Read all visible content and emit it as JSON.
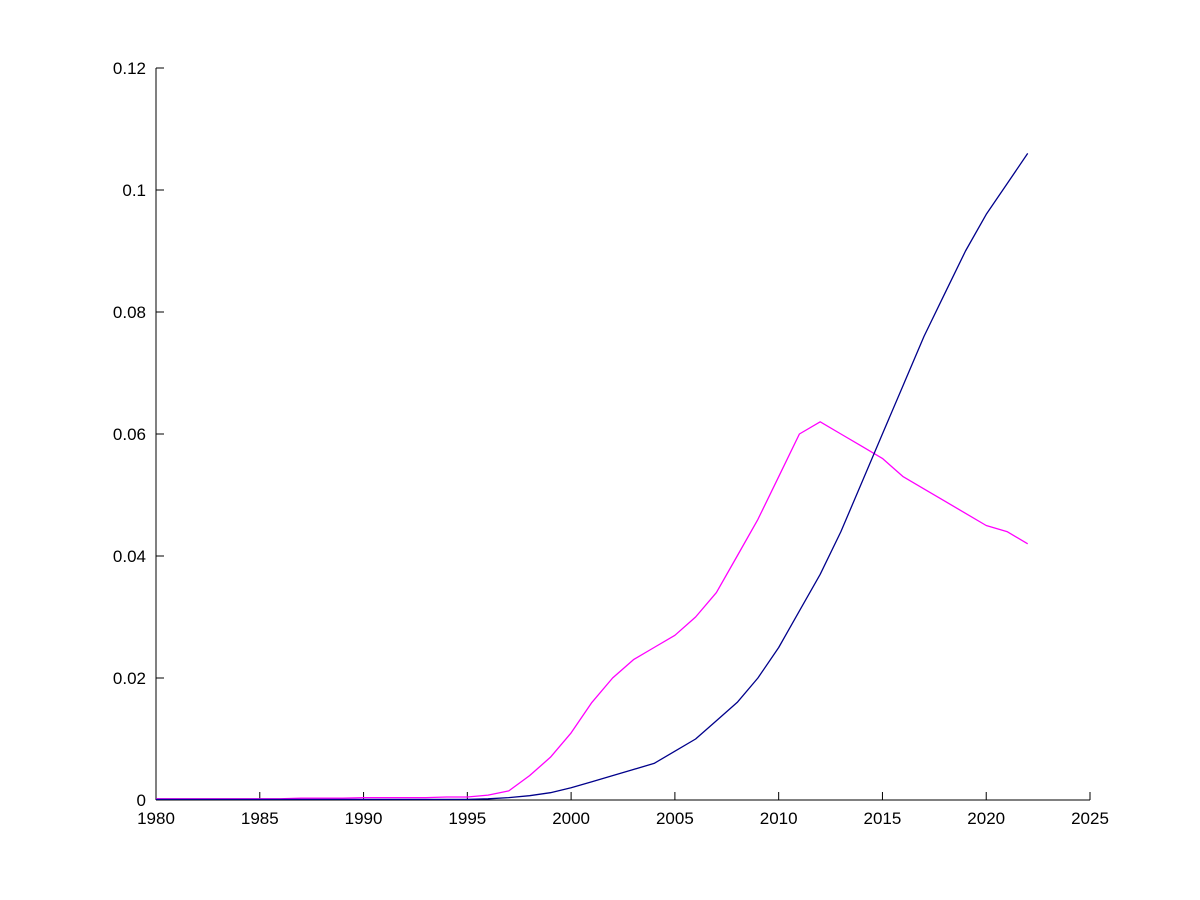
{
  "figure": {
    "background": "#ffffff",
    "axis_color": "#000000"
  },
  "chart_data": {
    "type": "line",
    "title": "",
    "xlabel": "",
    "ylabel": "",
    "grid": false,
    "legend": null,
    "xlim": [
      1980,
      2025
    ],
    "ylim": [
      0,
      0.12
    ],
    "xticks": [
      1980,
      1985,
      1990,
      1995,
      2000,
      2005,
      2010,
      2015,
      2020,
      2025
    ],
    "yticks": [
      0,
      0.02,
      0.04,
      0.06,
      0.08,
      0.1,
      0.12
    ],
    "ytick_labels": [
      "0",
      "0.02",
      "0.04",
      "0.06",
      "0.08",
      "0.1",
      "0.12"
    ],
    "x": [
      1980,
      1981,
      1982,
      1983,
      1984,
      1985,
      1986,
      1987,
      1988,
      1989,
      1990,
      1991,
      1992,
      1993,
      1994,
      1995,
      1996,
      1997,
      1998,
      1999,
      2000,
      2001,
      2002,
      2003,
      2004,
      2005,
      2006,
      2007,
      2008,
      2009,
      2010,
      2011,
      2012,
      2013,
      2014,
      2015,
      2016,
      2017,
      2018,
      2019,
      2020,
      2021,
      2022
    ],
    "series": [
      {
        "name": "magenta-series",
        "color": "#ff00ff",
        "values": [
          0.0002,
          0.0002,
          0.0002,
          0.0002,
          0.0002,
          0.0002,
          0.0002,
          0.0003,
          0.0003,
          0.0003,
          0.0004,
          0.0004,
          0.0004,
          0.0004,
          0.0005,
          0.0005,
          0.0008,
          0.0015,
          0.004,
          0.007,
          0.011,
          0.016,
          0.02,
          0.023,
          0.025,
          0.027,
          0.03,
          0.034,
          0.04,
          0.046,
          0.053,
          0.06,
          0.062,
          0.06,
          0.058,
          0.056,
          0.053,
          0.051,
          0.049,
          0.047,
          0.045,
          0.044,
          0.042
        ]
      },
      {
        "name": "blue-series",
        "color": "#00008b",
        "values": [
          0.0001,
          0.0001,
          0.0001,
          0.0001,
          0.0001,
          0.0001,
          0.0001,
          0.0001,
          0.0001,
          0.0001,
          0.0001,
          0.0001,
          0.0001,
          0.0001,
          0.0001,
          0.0001,
          0.0002,
          0.0004,
          0.0007,
          0.0012,
          0.002,
          0.003,
          0.004,
          0.005,
          0.006,
          0.008,
          0.01,
          0.013,
          0.016,
          0.02,
          0.025,
          0.031,
          0.037,
          0.044,
          0.052,
          0.06,
          0.068,
          0.076,
          0.083,
          0.09,
          0.096,
          0.101,
          0.106
        ]
      }
    ],
    "layout": {
      "plot_left": 156,
      "plot_right": 1090,
      "plot_top": 68,
      "plot_bottom": 800,
      "tick_length": 8
    }
  }
}
